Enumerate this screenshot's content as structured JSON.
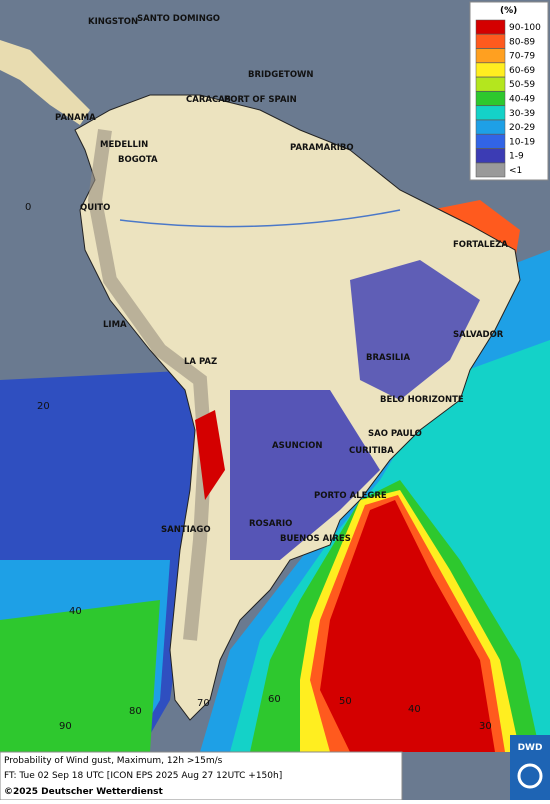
{
  "map": {
    "cities": [
      "KINGSTON",
      "SANTO DOMINGO",
      "BRIDGETOWN",
      "CARACAS",
      "PORT OF SPAIN",
      "PANAMA",
      "PARAMARIBO",
      "MEDELLIN",
      "BOGOTA",
      "QUITO",
      "FORTALEZA",
      "LIMA",
      "SALVADOR",
      "BRASILIA",
      "LA PAZ",
      "BELO HORIZONTE",
      "SAO PAULO",
      "ASUNCION",
      "CURITIBA",
      "PORTO ALEGRE",
      "ROSARIO",
      "SANTIAGO",
      "BUENOS AIRES"
    ],
    "grid_labels": [
      "0",
      "20",
      "40",
      "60",
      "50",
      "40",
      "30",
      "90",
      "80",
      "70"
    ]
  },
  "legend": {
    "unit": "(%)",
    "entries": [
      {
        "label": "90-100",
        "color": "#d40000"
      },
      {
        "label": "80-89",
        "color": "#ff5a1e"
      },
      {
        "label": "70-79",
        "color": "#ffa020"
      },
      {
        "label": "60-69",
        "color": "#ffee20"
      },
      {
        "label": "50-59",
        "color": "#b4e61e"
      },
      {
        "label": "40-49",
        "color": "#2ec82e"
      },
      {
        "label": "30-39",
        "color": "#14d2c8"
      },
      {
        "label": "20-29",
        "color": "#1ea0e6"
      },
      {
        "label": "10-19",
        "color": "#3264e6"
      },
      {
        "label": "1-9",
        "color": "#3c3cb4"
      },
      {
        "label": "<1",
        "color": "#9a9a9a"
      }
    ]
  },
  "footer": {
    "title": "Probability of Wind gust, Maximum, 12h >15m/s",
    "forecast": "FT: Tue 02 Sep 18 UTC [ICON EPS 2025 Aug 27 12UTC +150h]",
    "copyright": "©2025 Deutscher Wetterdienst",
    "logo": "DWD"
  }
}
